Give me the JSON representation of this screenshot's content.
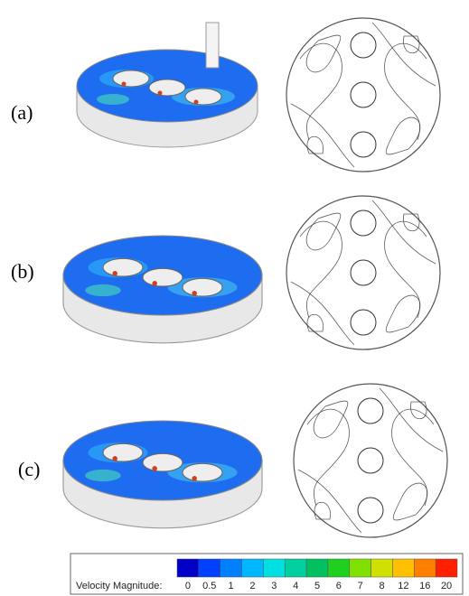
{
  "panels": [
    {
      "label": "(a)"
    },
    {
      "label": "(b)"
    },
    {
      "label": "(c)"
    }
  ],
  "legend": {
    "title": "Velocity Magnitude:",
    "labels": [
      "0",
      "0.5",
      "1",
      "2",
      "3",
      "4",
      "5",
      "6",
      "7",
      "8",
      "12",
      "16",
      "20"
    ]
  }
}
